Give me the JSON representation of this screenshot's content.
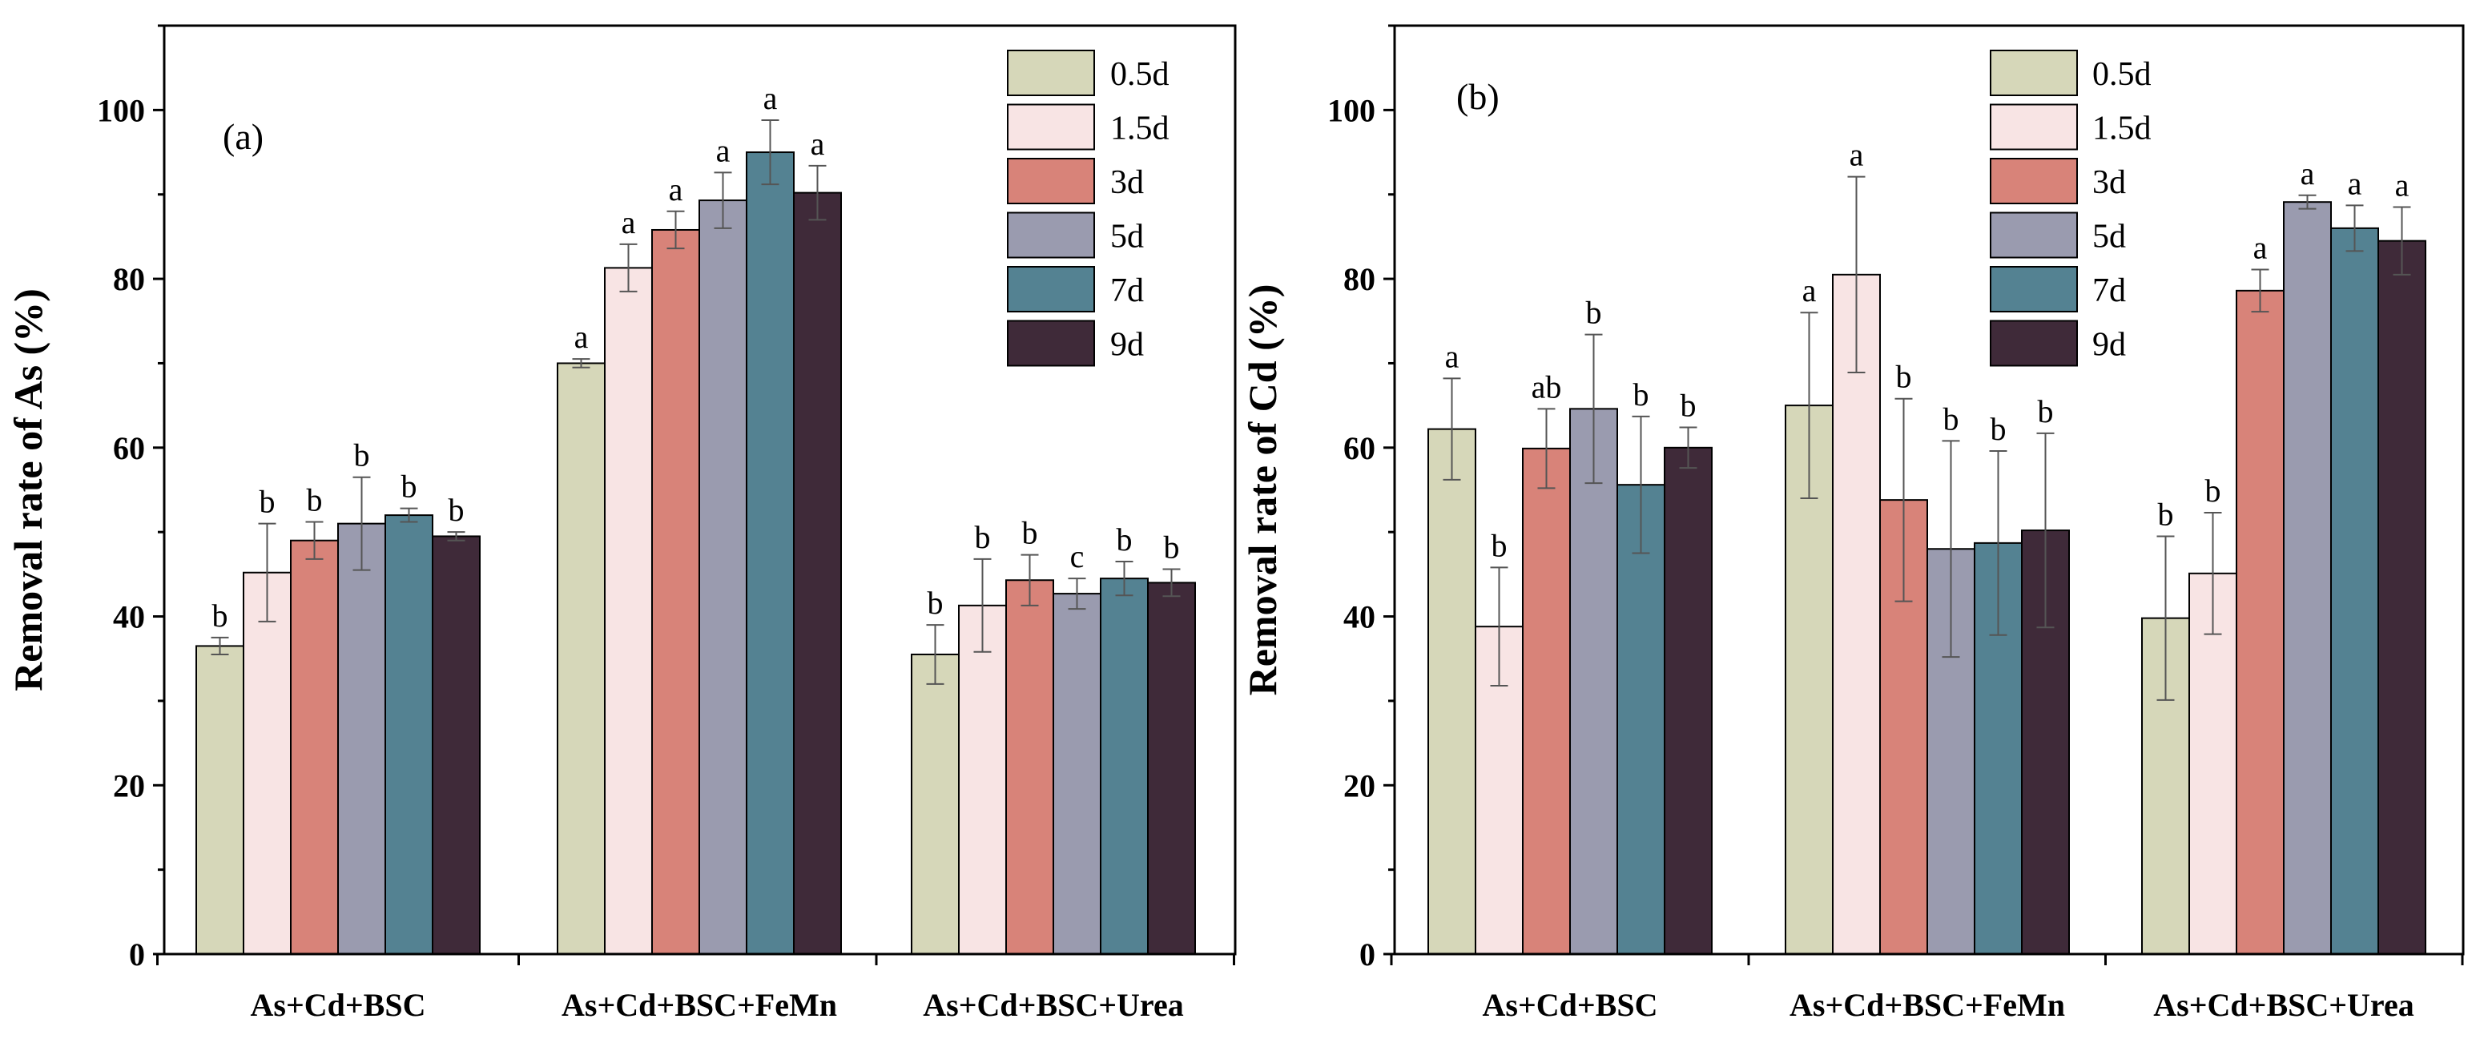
{
  "chart_data": [
    {
      "type": "bar",
      "panel_label": "(a)",
      "ylabel": "Removal rate of As (%)",
      "xlabel": "",
      "ylim": [
        0,
        110
      ],
      "yticks": [
        0,
        20,
        40,
        60,
        80,
        100
      ],
      "categories": [
        "As+Cd+BSC",
        "As+Cd+BSC+FeMn",
        "As+Cd+BSC+Urea"
      ],
      "legend_position": "top-right",
      "series": [
        {
          "name": "0.5d",
          "color": "#d6d7b9",
          "values": [
            36.5,
            70.0,
            35.5
          ],
          "errors": [
            1.0,
            0.5,
            3.5
          ],
          "labels": [
            "b",
            "a",
            "b"
          ]
        },
        {
          "name": "1.5d",
          "color": "#f8e4e4",
          "values": [
            45.2,
            81.3,
            41.3
          ],
          "errors": [
            5.8,
            2.8,
            5.5
          ],
          "labels": [
            "b",
            "a",
            "b"
          ]
        },
        {
          "name": "3d",
          "color": "#d88379",
          "values": [
            49.0,
            85.8,
            44.3
          ],
          "errors": [
            2.2,
            2.2,
            3.0
          ],
          "labels": [
            "b",
            "a",
            "b"
          ]
        },
        {
          "name": "5d",
          "color": "#9a9baf",
          "values": [
            51.0,
            89.3,
            42.7
          ],
          "errors": [
            5.5,
            3.3,
            1.8
          ],
          "labels": [
            "b",
            "a",
            "c"
          ]
        },
        {
          "name": "7d",
          "color": "#548292",
          "values": [
            52.0,
            95.0,
            44.5
          ],
          "errors": [
            0.8,
            3.8,
            2.0
          ],
          "labels": [
            "b",
            "a",
            "b"
          ]
        },
        {
          "name": "9d",
          "color": "#3f2a39",
          "values": [
            49.5,
            90.2,
            44.0
          ],
          "errors": [
            0.5,
            3.2,
            1.6
          ],
          "labels": [
            "b",
            "a",
            "b"
          ]
        }
      ]
    },
    {
      "type": "bar",
      "panel_label": "(b)",
      "ylabel": "Removal rate of Cd (%)",
      "xlabel": "",
      "ylim": [
        0,
        110
      ],
      "yticks": [
        0,
        20,
        40,
        60,
        80,
        100
      ],
      "categories": [
        "As+Cd+BSC",
        "As+Cd+BSC+FeMn",
        "As+Cd+BSC+Urea"
      ],
      "legend_position": "top-center",
      "series": [
        {
          "name": "0.5d",
          "color": "#d6d7b9",
          "values": [
            62.2,
            65.0,
            39.8
          ],
          "errors": [
            6.0,
            11.0,
            9.7
          ],
          "labels": [
            "a",
            "a",
            "b"
          ]
        },
        {
          "name": "1.5d",
          "color": "#f8e4e4",
          "values": [
            38.8,
            80.5,
            45.1
          ],
          "errors": [
            7.0,
            11.6,
            7.2
          ],
          "labels": [
            "b",
            "a",
            "b"
          ]
        },
        {
          "name": "3d",
          "color": "#d88379",
          "values": [
            59.9,
            53.8,
            78.6
          ],
          "errors": [
            4.7,
            12.0,
            2.5
          ],
          "labels": [
            "ab",
            "b",
            "a"
          ]
        },
        {
          "name": "5d",
          "color": "#9a9baf",
          "values": [
            64.6,
            48.0,
            89.1
          ],
          "errors": [
            8.8,
            12.8,
            0.8
          ],
          "labels": [
            "b",
            "b",
            "a"
          ]
        },
        {
          "name": "7d",
          "color": "#548292",
          "values": [
            55.6,
            48.7,
            86.0
          ],
          "errors": [
            8.1,
            10.9,
            2.7
          ],
          "labels": [
            "b",
            "b",
            "a"
          ]
        },
        {
          "name": "9d",
          "color": "#3f2a39",
          "values": [
            60.0,
            50.2,
            84.5
          ],
          "errors": [
            2.4,
            11.5,
            4.0
          ],
          "labels": [
            "b",
            "b",
            "a"
          ]
        }
      ]
    }
  ]
}
